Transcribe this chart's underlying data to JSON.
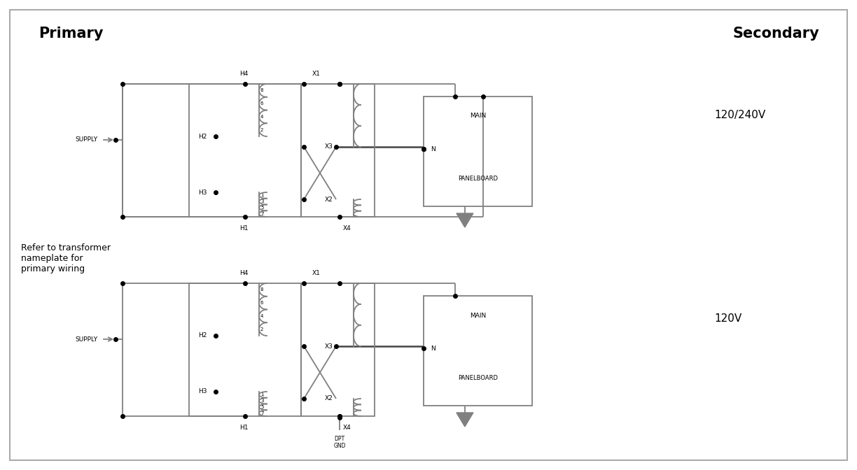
{
  "title_primary": "Primary",
  "title_secondary": "Secondary",
  "label_120_240v": "120/240V",
  "label_120v": "120V",
  "note": "Refer to transformer\nnameplate for\nprimary wiring",
  "bg_color": "#ffffff",
  "line_color": "#808080",
  "text_color": "#000000",
  "border_color": "#aaaaaa",
  "lw_main": 1.3,
  "lw_heavy": 1.8
}
